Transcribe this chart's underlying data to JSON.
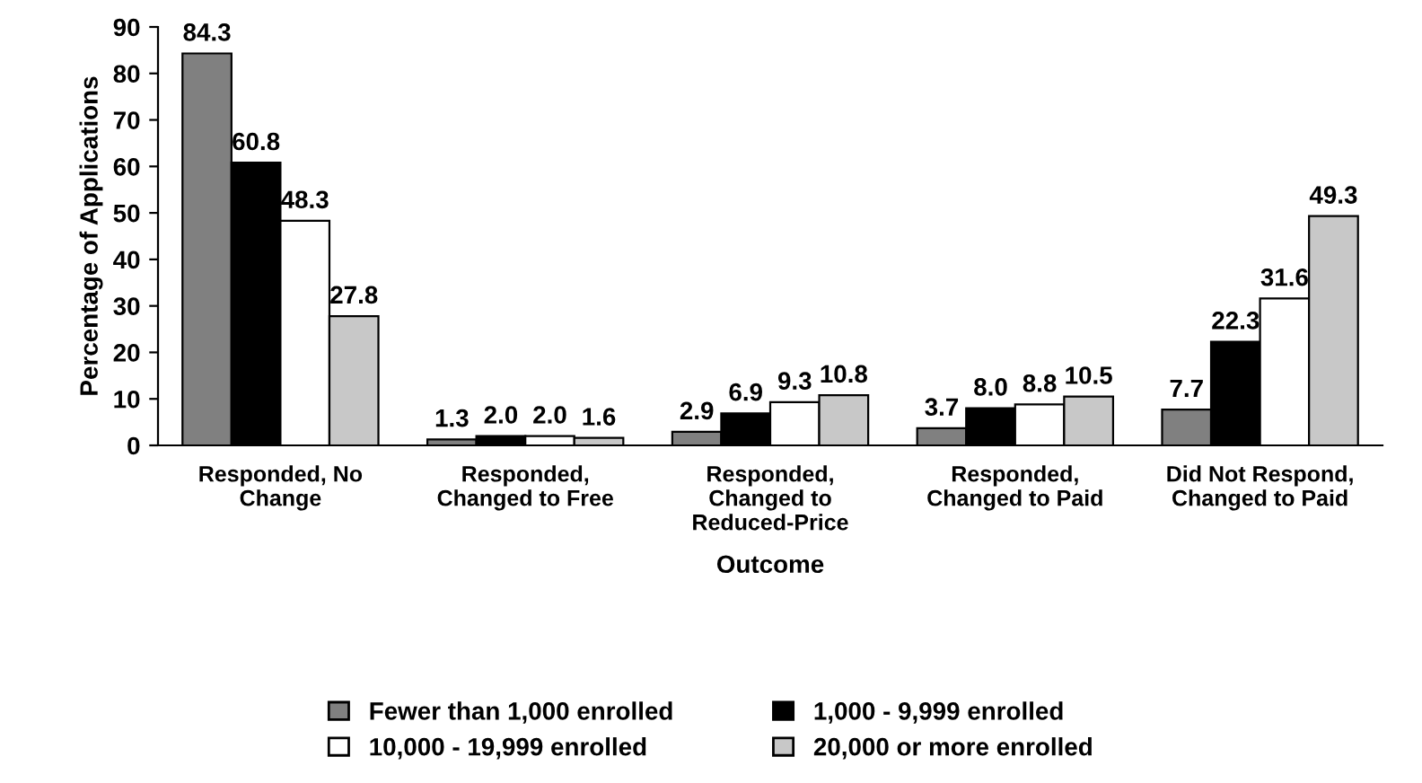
{
  "chart_data": {
    "type": "bar",
    "xlabel": "Outcome",
    "ylabel": "Percentage of Applications",
    "categories": [
      "Responded, No\nChange",
      "Responded,\nChanged to Free",
      "Responded,\nChanged to\nReduced-Price",
      "Responded,\nChanged to Paid",
      "Did Not Respond,\nChanged to Paid"
    ],
    "series": [
      {
        "name": "Fewer than 1,000 enrolled",
        "color": "#808080",
        "values": [
          84.3,
          1.3,
          2.9,
          3.7,
          7.7
        ],
        "value_labels": [
          "84.3",
          "1.3",
          "2.9",
          "3.7",
          "7.7"
        ]
      },
      {
        "name": "1,000 - 9,999 enrolled",
        "color": "#000000",
        "values": [
          60.8,
          2.0,
          6.9,
          8.0,
          22.3
        ],
        "value_labels": [
          "60.8",
          "2.0",
          "6.9",
          "8.0",
          "22.3"
        ]
      },
      {
        "name": "10,000 - 19,999 enrolled",
        "color": "#ffffff",
        "values": [
          48.3,
          2.0,
          9.3,
          8.8,
          31.6
        ],
        "value_labels": [
          "48.3",
          "2.0",
          "9.3",
          "8.8",
          "31.6"
        ]
      },
      {
        "name": "20,000 or more enrolled",
        "color": "#c8c8c8",
        "values": [
          27.8,
          1.6,
          10.8,
          10.5,
          49.3
        ],
        "value_labels": [
          "27.8",
          "1.6",
          "10.8",
          "10.5",
          "49.3"
        ]
      }
    ],
    "ylim": [
      0,
      90
    ],
    "yticks": [
      0,
      10,
      20,
      30,
      40,
      50,
      60,
      70,
      80,
      90
    ],
    "grid": false,
    "legend": "bottom"
  }
}
